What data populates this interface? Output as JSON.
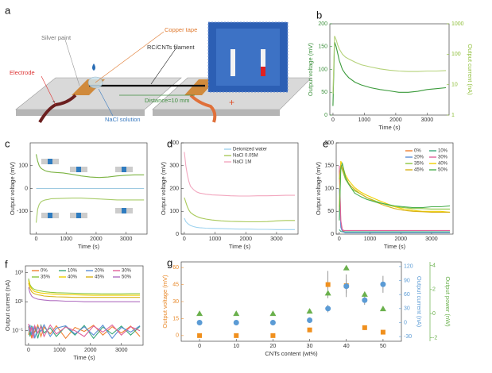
{
  "panel_a": {
    "label": "a",
    "silver_paint": "Silver paint",
    "copper_tape": "Copper tape",
    "filament": "RC/CNTs filament",
    "electrode": "Electrode",
    "distance": "Distance=10 mm",
    "nacl": "NaCl solution",
    "minus": "-",
    "plus": "+"
  },
  "chart_data": [
    {
      "type": "line",
      "label": "b",
      "xlabel": "Time (s)",
      "ylabel": "Output voltage (mV)",
      "y2label": "Output current (nA)",
      "ycolor": "#3a8f3a",
      "y2color": "#8fbf3a",
      "xlim": [
        -100,
        3700
      ],
      "xticks": [
        0,
        1000,
        2000,
        3000
      ],
      "ylim": [
        0,
        200
      ],
      "yticks": [
        0,
        50,
        100,
        150,
        200
      ],
      "y2lim": [
        1,
        1000
      ],
      "y2ticks": [
        1,
        10,
        100,
        1000
      ],
      "y2log": true,
      "x": [
        0,
        50,
        100,
        150,
        200,
        300,
        400,
        500,
        700,
        900,
        1200,
        1500,
        1800,
        2100,
        2400,
        2700,
        3000,
        3300,
        3600
      ],
      "series": [
        {
          "color": "#3a9a3a",
          "values": [
            20,
            160,
            150,
            135,
            120,
            100,
            90,
            82,
            72,
            66,
            60,
            56,
            53,
            50,
            50,
            52,
            56,
            58,
            60
          ]
        },
        {
          "color": "#b5d27a",
          "axis": "y2",
          "values": [
            5,
            400,
            300,
            200,
            150,
            100,
            80,
            70,
            55,
            45,
            38,
            33,
            30,
            28,
            27,
            27,
            28,
            28,
            29
          ]
        }
      ]
    },
    {
      "type": "line",
      "label": "c",
      "xlabel": "Time (s)",
      "ylabel": "Output voltage (mV)",
      "xlim": [
        -200,
        3700
      ],
      "xticks": [
        0,
        1000,
        2000,
        3000
      ],
      "ylim": [
        -200,
        200
      ],
      "yticks": [
        -100,
        0,
        100
      ],
      "x": [
        0,
        50,
        100,
        150,
        200,
        300,
        400,
        500,
        700,
        900,
        1200,
        1500,
        1800,
        2100,
        2400,
        2700,
        3000,
        3300,
        3600
      ],
      "series": [
        {
          "color": "#7cb342",
          "values": [
            150,
            120,
            100,
            90,
            85,
            78,
            74,
            72,
            70,
            68,
            62,
            55,
            50,
            48,
            50,
            55,
            58,
            60,
            60
          ]
        },
        {
          "color": "#9ecae1",
          "values": [
            0,
            0,
            0,
            0,
            0,
            0,
            0,
            0,
            0,
            0,
            0,
            0,
            0,
            0,
            0,
            0,
            0,
            0,
            0
          ]
        },
        {
          "color": "#a8cc6a",
          "values": [
            -150,
            -90,
            -70,
            -60,
            -55,
            -50,
            -48,
            -45,
            -44,
            -43,
            -42,
            -42,
            -44,
            -46,
            -48,
            -50,
            -50,
            -50,
            -50
          ]
        }
      ]
    },
    {
      "type": "line",
      "label": "d",
      "xlabel": "Time (s)",
      "ylabel": "Output voltage (mV)",
      "xlim": [
        -100,
        3700
      ],
      "xticks": [
        0,
        1000,
        2000,
        3000
      ],
      "ylim": [
        0,
        400
      ],
      "yticks": [
        0,
        100,
        200,
        300,
        400
      ],
      "legend_columns": 1,
      "x": [
        0,
        50,
        100,
        150,
        200,
        300,
        400,
        500,
        700,
        900,
        1200,
        1500,
        1800,
        2100,
        2400,
        2700,
        3000,
        3300,
        3600
      ],
      "series": [
        {
          "name": "Deionized water",
          "color": "#9fd3ef",
          "values": [
            70,
            55,
            48,
            42,
            38,
            33,
            30,
            28,
            26,
            25,
            24,
            23,
            22,
            22,
            21,
            21,
            20,
            20,
            20
          ]
        },
        {
          "name": "NaCl 0.05M",
          "color": "#a9c95a",
          "values": [
            160,
            140,
            120,
            105,
            95,
            85,
            78,
            72,
            66,
            62,
            58,
            56,
            55,
            54,
            54,
            55,
            58,
            60,
            60
          ]
        },
        {
          "name": "NaCl 1M",
          "color": "#f2a6be",
          "values": [
            360,
            300,
            260,
            230,
            210,
            195,
            185,
            180,
            175,
            172,
            170,
            168,
            167,
            167,
            168,
            168,
            169,
            170,
            170
          ]
        }
      ]
    },
    {
      "type": "line",
      "label": "e",
      "xlabel": "Time (s)",
      "ylabel": "Output voltage (mV)",
      "xlim": [
        -100,
        3700
      ],
      "xticks": [
        0,
        1000,
        2000,
        3000
      ],
      "ylim": [
        0,
        200
      ],
      "yticks": [
        0,
        50,
        100,
        150,
        200
      ],
      "legend_columns": 2,
      "x": [
        0,
        50,
        100,
        150,
        200,
        300,
        400,
        500,
        700,
        900,
        1200,
        1500,
        1800,
        2100,
        2400,
        2700,
        3000,
        3300,
        3600
      ],
      "series": [
        {
          "name": "0%",
          "color": "#f08030",
          "values": [
            140,
            20,
            8,
            6,
            5,
            5,
            5,
            5,
            5,
            5,
            5,
            5,
            5,
            5,
            5,
            5,
            5,
            5,
            5
          ]
        },
        {
          "name": "10%",
          "color": "#3aa87a",
          "values": [
            10,
            6,
            5,
            5,
            5,
            5,
            5,
            5,
            5,
            5,
            5,
            5,
            5,
            5,
            5,
            5,
            5,
            5,
            5
          ]
        },
        {
          "name": "20%",
          "color": "#5b8fd6",
          "values": [
            100,
            15,
            6,
            4,
            3,
            3,
            3,
            3,
            3,
            3,
            3,
            3,
            3,
            3,
            3,
            3,
            3,
            3,
            3
          ]
        },
        {
          "name": "30%",
          "color": "#e0609a",
          "values": [
            150,
            30,
            10,
            8,
            8,
            8,
            8,
            8,
            8,
            8,
            8,
            8,
            8,
            8,
            8,
            8,
            8,
            8,
            8
          ]
        },
        {
          "name": "35%",
          "color": "#8cc63f",
          "values": [
            120,
            150,
            140,
            130,
            120,
            110,
            100,
            95,
            88,
            80,
            72,
            65,
            60,
            58,
            56,
            56,
            55,
            55,
            55
          ]
        },
        {
          "name": "40%",
          "color": "#f0d000",
          "values": [
            60,
            160,
            150,
            140,
            130,
            118,
            110,
            102,
            92,
            85,
            76,
            68,
            60,
            55,
            52,
            50,
            50,
            50,
            48
          ]
        },
        {
          "name": "45%",
          "color": "#d9b21a",
          "values": [
            50,
            150,
            145,
            135,
            125,
            112,
            104,
            98,
            88,
            80,
            70,
            62,
            56,
            52,
            50,
            49,
            48,
            48,
            48
          ]
        },
        {
          "name": "50%",
          "color": "#4caf50",
          "values": [
            30,
            145,
            155,
            140,
            125,
            110,
            100,
            90,
            82,
            76,
            70,
            66,
            62,
            60,
            58,
            58,
            60,
            60,
            62
          ]
        }
      ]
    },
    {
      "type": "line",
      "label": "f",
      "xlabel": "Time (s)",
      "ylabel": "Output current (nA)",
      "xlim": [
        -100,
        3700
      ],
      "xticks": [
        0,
        1000,
        2000,
        3000
      ],
      "ylim": [
        0.01,
        3000
      ],
      "ylog": true,
      "yticks": [
        {
          "value": 0.1,
          "label": "10⁻¹"
        },
        {
          "value": 10,
          "label": "10¹"
        },
        {
          "value": 1000,
          "label": "10³"
        }
      ],
      "legend_columns": 4,
      "x": [
        0,
        50,
        100,
        150,
        200,
        300,
        400,
        500,
        700,
        900,
        1200,
        1500,
        1800,
        2100,
        2400,
        2700,
        3000,
        3300,
        3600
      ],
      "series": [
        {
          "name": "0%",
          "color": "#f08030",
          "values": [
            0.05,
            0.2,
            0.03,
            0.15,
            0.08,
            0.25,
            0.04,
            0.18,
            0.06,
            0.22,
            0.03,
            0.17,
            0.09,
            0.24,
            0.05,
            0.19,
            0.07,
            0.21,
            0.04
          ]
        },
        {
          "name": "10%",
          "color": "#3aa87a",
          "values": [
            0.2,
            0.04,
            0.22,
            0.06,
            0.19,
            0.03,
            0.24,
            0.07,
            0.16,
            0.04,
            0.2,
            0.05,
            0.23,
            0.03,
            0.18,
            0.06,
            0.21,
            0.05,
            0.2
          ]
        },
        {
          "name": "20%",
          "color": "#5b8fd6",
          "values": [
            0.1,
            0.25,
            0.05,
            0.2,
            0.03,
            0.18,
            0.09,
            0.26,
            0.04,
            0.15,
            0.22,
            0.06,
            0.19,
            0.05,
            0.24,
            0.03,
            0.17,
            0.08,
            0.22
          ]
        },
        {
          "name": "30%",
          "color": "#e0609a",
          "values": [
            0.3,
            0.08,
            0.18,
            0.03,
            0.22,
            0.07,
            0.2,
            0.04,
            0.25,
            0.06,
            0.18,
            0.1,
            0.04,
            0.21,
            0.08,
            0.25,
            0.05,
            0.19,
            0.1
          ]
        },
        {
          "name": "35%",
          "color": "#8cc63f",
          "values": [
            400,
            150,
            100,
            80,
            70,
            60,
            55,
            50,
            45,
            42,
            40,
            38,
            37,
            36,
            35,
            35,
            35,
            36,
            36
          ]
        },
        {
          "name": "40%",
          "color": "#f0d000",
          "values": [
            300,
            120,
            80,
            60,
            50,
            45,
            40,
            38,
            35,
            33,
            30,
            30,
            29,
            28,
            28,
            28,
            28,
            28,
            28
          ]
        },
        {
          "name": "45%",
          "color": "#d9b21a",
          "values": [
            200,
            80,
            50,
            40,
            35,
            30,
            28,
            25,
            23,
            22,
            21,
            20,
            20,
            20,
            20,
            20,
            20,
            20,
            20
          ]
        },
        {
          "name": "50%",
          "color": "#b06fc0",
          "values": [
            100,
            40,
            25,
            20,
            18,
            15,
            14,
            13,
            12,
            12,
            11,
            11,
            10,
            10,
            10,
            10,
            10,
            10,
            10
          ]
        }
      ]
    },
    {
      "type": "scatter",
      "label": "g",
      "xlabel": "CNTs content (wt%)",
      "ylabel": "Output voltage (mV)",
      "y2label": "Output current (nA)",
      "y3label": "Output power (nW)",
      "ycolor": "#e8892a",
      "y2color": "#5b9bd5",
      "y3color": "#6ab04c",
      "xlim": [
        -5,
        55
      ],
      "xticks": [
        0,
        10,
        20,
        30,
        40,
        50
      ],
      "ylim": [
        -5,
        65
      ],
      "yticks": [
        0,
        15,
        30,
        45,
        60
      ],
      "y2lim": [
        -40,
        130
      ],
      "y2ticks": [
        -30,
        0,
        30,
        60,
        90,
        120
      ],
      "y3lim": [
        -2.3,
        4.3
      ],
      "y3ticks": [
        -2,
        0,
        2,
        4
      ],
      "x": [
        0,
        10,
        20,
        30,
        35,
        40,
        45,
        50
      ],
      "series": [
        {
          "color": "#f0901e",
          "marker": "square",
          "values": [
            0,
            0,
            0,
            5,
            45,
            44,
            7,
            3
          ],
          "errors": [
            0,
            0,
            0,
            2,
            12,
            10,
            2,
            1
          ]
        },
        {
          "color": "#5b9bd5",
          "marker": "circle",
          "axis": "y2",
          "values": [
            0,
            0,
            0,
            5,
            30,
            78,
            48,
            82
          ],
          "errors": [
            2,
            2,
            2,
            6,
            8,
            15,
            10,
            18
          ]
        },
        {
          "color": "#6ab04c",
          "marker": "triangle",
          "axis": "y3",
          "values": [
            0,
            0,
            0,
            0.2,
            1.7,
            3.8,
            1.6,
            0.4
          ]
        }
      ]
    }
  ]
}
